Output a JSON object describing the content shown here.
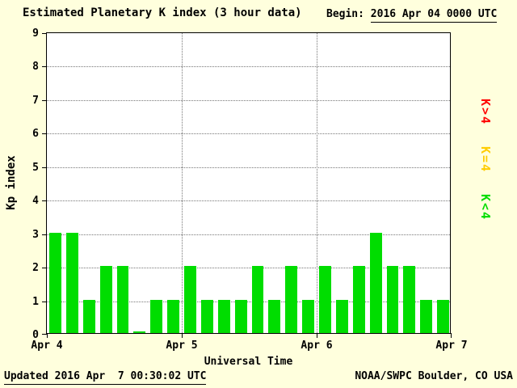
{
  "title": "Estimated Planetary K index (3 hour data)",
  "begin": {
    "label": "Begin:",
    "value": "2016 Apr 04 0000 UTC"
  },
  "footer": {
    "updated": "Updated 2016 Apr  7 00:30:02 UTC",
    "source": "NOAA/SWPC Boulder, CO USA"
  },
  "legend": [
    {
      "label": "K>4",
      "color": "#ff0000"
    },
    {
      "label": "K=4",
      "color": "#ffcc00"
    },
    {
      "label": "K<4",
      "color": "#00dd00"
    }
  ],
  "colors": {
    "background": "#ffffdd",
    "plot_background": "#ffffff",
    "bar": "#00dd00",
    "axis": "#000000",
    "grid": "#777777"
  },
  "chart_data": {
    "type": "bar",
    "title": "Estimated Planetary K index (3 hour data)",
    "xlabel": "Universal Time",
    "ylabel": "Kp index",
    "ylim": [
      0,
      9
    ],
    "y_ticks": [
      0,
      1,
      2,
      3,
      4,
      5,
      6,
      7,
      8,
      9
    ],
    "x_tick_labels": [
      "Apr 4",
      "Apr 5",
      "Apr 6",
      "Apr 7"
    ],
    "interval_hours": 3,
    "bars_per_day": 8,
    "grid": "dotted",
    "legend_position": "right",
    "values": [
      3,
      3,
      1,
      2,
      2,
      0,
      1,
      1,
      2,
      1,
      1,
      1,
      2,
      1,
      2,
      1,
      2,
      1,
      2,
      3,
      2,
      2,
      1,
      1
    ]
  }
}
